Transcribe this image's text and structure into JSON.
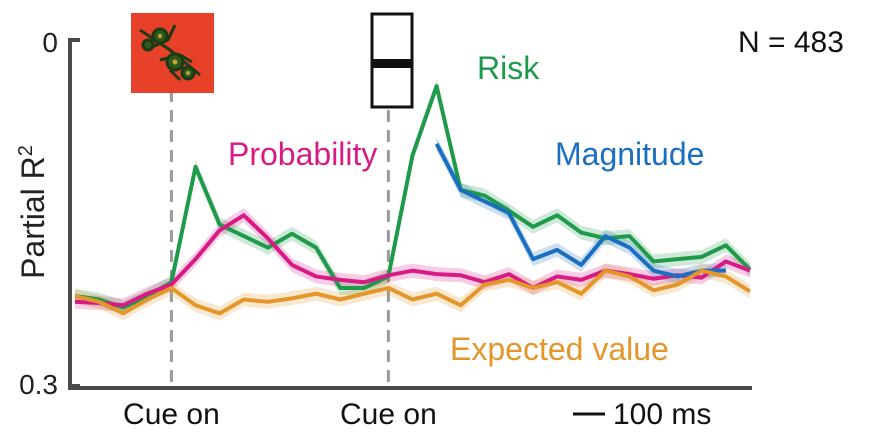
{
  "annotations": {
    "n_label": "N = 483",
    "scale_bar": "100 ms"
  },
  "cue_icons": [
    "fractal-cue-icon",
    "bar-cue-icon"
  ],
  "chart_data": {
    "type": "line",
    "title": "",
    "xlabel": "",
    "ylabel": "Partial R",
    "ylabel_superscript": "2",
    "ylim": [
      0,
      0.3
    ],
    "y_ticks": [
      "0",
      "0.3"
    ],
    "x_events": [
      {
        "label": "Cue on",
        "x": 0
      },
      {
        "label": "Cue on",
        "x": 450
      }
    ],
    "x_range": [
      -200,
      1200
    ],
    "legend_placement": "inline labels",
    "x": [
      -200,
      -150,
      -100,
      -50,
      0,
      50,
      100,
      150,
      200,
      250,
      300,
      350,
      400,
      450,
      500,
      550,
      600,
      650,
      700,
      750,
      800,
      850,
      900,
      950,
      1000,
      1050,
      1100,
      1150,
      1200
    ],
    "series": [
      {
        "name": "Risk",
        "color": "#1f9a4b",
        "values": [
          0.078,
          0.075,
          0.068,
          0.078,
          0.09,
          0.19,
          0.14,
          0.13,
          0.12,
          0.132,
          0.12,
          0.085,
          0.085,
          0.095,
          0.2,
          0.26,
          0.17,
          0.165,
          0.152,
          0.138,
          0.148,
          0.133,
          0.128,
          0.13,
          0.108,
          0.11,
          0.112,
          0.122,
          0.101
        ]
      },
      {
        "name": "Probability",
        "color": "#d81b84",
        "values": [
          0.073,
          0.072,
          0.07,
          0.08,
          0.088,
          0.11,
          0.135,
          0.148,
          0.128,
          0.105,
          0.095,
          0.092,
          0.09,
          0.096,
          0.1,
          0.097,
          0.096,
          0.09,
          0.097,
          0.085,
          0.095,
          0.092,
          0.1,
          0.097,
          0.093,
          0.096,
          0.094,
          0.108,
          0.1
        ]
      },
      {
        "name": "Magnitude",
        "color": "#1a6fc0",
        "values": [
          null,
          null,
          null,
          null,
          null,
          null,
          null,
          null,
          null,
          null,
          null,
          null,
          null,
          null,
          null,
          0.21,
          0.17,
          0.16,
          0.15,
          0.11,
          0.118,
          0.105,
          0.13,
          0.12,
          0.1,
          0.095,
          0.1,
          0.1,
          null
        ]
      },
      {
        "name": "Expected value",
        "color": "#e5962a",
        "values": [
          0.078,
          0.073,
          0.063,
          0.075,
          0.085,
          0.07,
          0.063,
          0.075,
          0.073,
          0.076,
          0.08,
          0.075,
          0.08,
          0.085,
          0.075,
          0.08,
          0.07,
          0.088,
          0.092,
          0.085,
          0.09,
          0.08,
          0.1,
          0.095,
          0.083,
          0.088,
          0.1,
          0.095,
          0.082
        ]
      }
    ]
  }
}
